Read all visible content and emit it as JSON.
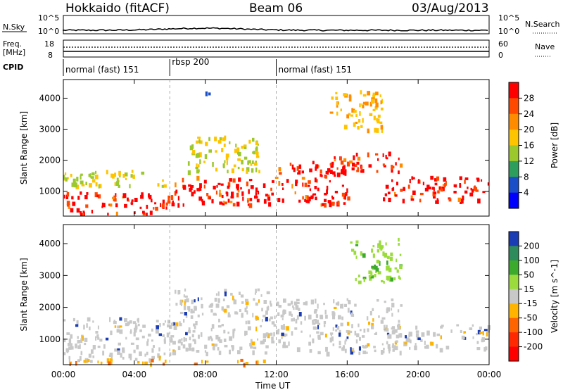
{
  "header": {
    "station": "Hokkaido (fitACF)",
    "beam": "Beam 06",
    "date": "03/Aug/2013"
  },
  "top_panels": {
    "nsky_label": "N.Sky",
    "nsearch_label": "N.Search",
    "nsky_ticks": [
      "10^5",
      "10^0"
    ],
    "nsearch_ticks": [
      "10^5",
      "10^0"
    ],
    "freq_label": "Freq.",
    "freq_unit": "[MHz]",
    "freq_ticks": [
      "18",
      "8"
    ],
    "nave_label": "Nave",
    "nave_ticks": [
      "60",
      "0"
    ],
    "cpid_label": "CPID",
    "cpid_segments": [
      {
        "start_hour": 0,
        "end_hour": 6.0,
        "label": "normal (fast) 151"
      },
      {
        "start_hour": 6.0,
        "end_hour": 12.0,
        "label": "rbsp 200"
      },
      {
        "start_hour": 12.0,
        "end_hour": 24.0,
        "label": "normal (fast) 151"
      }
    ]
  },
  "x_axis": {
    "title": "Time UT",
    "ticks": [
      "00:00",
      "04:00",
      "08:00",
      "12:00",
      "16:00",
      "20:00",
      "00:00"
    ]
  },
  "chart_data": [
    {
      "type": "heatmap",
      "title": "",
      "xlabel": "Time UT",
      "ylabel": "Slant Range [km]",
      "xlim_hours": [
        0,
        24
      ],
      "ylim": [
        200,
        4600
      ],
      "yticks": [
        1000,
        2000,
        3000,
        4000
      ],
      "colorbar": {
        "label": "Power [dB]",
        "ticks": [
          "28",
          "24",
          "20",
          "16",
          "12",
          "8",
          "4"
        ],
        "colors": [
          "#ff0000",
          "#ff4800",
          "#ff8c00",
          "#ffc400",
          "#9bc82c",
          "#2e9e5c",
          "#1a4ec8",
          "#0000ff"
        ]
      },
      "bands": [
        {
          "start_hour": 0,
          "end_hour": 6,
          "range_lo": 300,
          "range_hi": 1000,
          "power_db": 28
        },
        {
          "start_hour": 6,
          "end_hour": 12,
          "range_lo": 600,
          "range_hi": 1500,
          "power_db": 28
        },
        {
          "start_hour": 12,
          "end_hour": 16,
          "range_lo": 600,
          "range_hi": 2000,
          "power_db": 26
        },
        {
          "start_hour": 15,
          "end_hour": 19,
          "range_lo": 1600,
          "range_hi": 2300,
          "power_db": 26
        },
        {
          "start_hour": 18,
          "end_hour": 24,
          "range_lo": 700,
          "range_hi": 1500,
          "power_db": 28
        },
        {
          "start_hour": 7,
          "end_hour": 11,
          "range_lo": 1600,
          "range_hi": 2800,
          "power_db": 16
        },
        {
          "start_hour": 15,
          "end_hour": 18,
          "range_lo": 3000,
          "range_hi": 4300,
          "power_db": 20
        },
        {
          "start_hour": 8,
          "end_hour": 9,
          "range_lo": 4100,
          "range_hi": 4300,
          "power_db": 8
        },
        {
          "start_hour": 0,
          "end_hour": 6,
          "range_lo": 1200,
          "range_hi": 1700,
          "power_db": 14
        }
      ]
    },
    {
      "type": "heatmap",
      "title": "",
      "xlabel": "Time UT",
      "ylabel": "Slant Range [km]",
      "xlim_hours": [
        0,
        24
      ],
      "ylim": [
        200,
        4600
      ],
      "yticks": [
        1000,
        2000,
        3000,
        4000
      ],
      "colorbar": {
        "label": "Velocity [m s^-1]",
        "ticks": [
          "200",
          "100",
          "50",
          "15",
          "-15",
          "-50",
          "-100",
          "-200"
        ],
        "colors": [
          "#1a3cb4",
          "#2e8c5c",
          "#3caa2c",
          "#9bdc3c",
          "#c8c8c8",
          "#ffb400",
          "#ff6400",
          "#ff2800",
          "#ff0000"
        ]
      },
      "bands": [
        {
          "start_hour": 0,
          "end_hour": 6,
          "range_lo": 300,
          "range_hi": 1700,
          "velocity": 0
        },
        {
          "start_hour": 6,
          "end_hour": 12,
          "range_lo": 600,
          "range_hi": 2600,
          "velocity": 0
        },
        {
          "start_hour": 12,
          "end_hour": 19,
          "range_lo": 600,
          "range_hi": 2300,
          "velocity": 0
        },
        {
          "start_hour": 18,
          "end_hour": 24,
          "range_lo": 700,
          "range_hi": 1500,
          "velocity": 0
        },
        {
          "start_hour": 16,
          "end_hour": 19,
          "range_lo": 2800,
          "range_hi": 4200,
          "velocity": 50
        },
        {
          "start_hour": 0,
          "end_hour": 12,
          "range_lo": 250,
          "range_hi": 400,
          "velocity": -30
        }
      ]
    }
  ]
}
